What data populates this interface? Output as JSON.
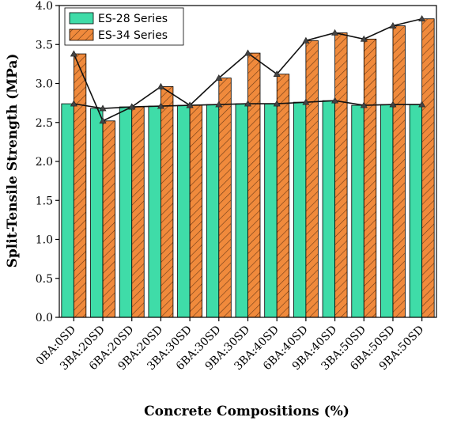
{
  "chart_data": {
    "type": "bar",
    "title": "",
    "xlabel": "Concrete Compositions (%)",
    "ylabel": "Split-Tensile Strength (MPa)",
    "ylim": [
      0,
      4.0
    ],
    "yticks": [
      "0.0",
      "0.5",
      "1.0",
      "1.5",
      "2.0",
      "2.5",
      "3.0",
      "3.5",
      "4.0"
    ],
    "categories": [
      "0BA:0SD",
      "3BA:20SD",
      "6BA:20SD",
      "9BA:20SD",
      "3BA:30SD",
      "6BA:30SD",
      "9BA:30SD",
      "3BA:40SD",
      "6BA:40SD",
      "9BA:40SD",
      "3BA:50SD",
      "6BA:50SD",
      "9BA:50SD"
    ],
    "series": [
      {
        "name": "ES-28 Series",
        "values": [
          2.74,
          2.68,
          2.7,
          2.71,
          2.72,
          2.73,
          2.74,
          2.74,
          2.76,
          2.78,
          2.72,
          2.73,
          2.73
        ],
        "color": "#3fdca8",
        "pattern": "solid"
      },
      {
        "name": "ES-34 Series",
        "values": [
          3.38,
          2.52,
          2.7,
          2.96,
          2.72,
          3.07,
          3.39,
          3.12,
          3.55,
          3.65,
          3.57,
          3.74,
          3.83
        ],
        "color": "#f08a3c",
        "pattern": "hatch"
      }
    ],
    "trend_lines": true,
    "legend_position": "top-left",
    "grid": false
  }
}
